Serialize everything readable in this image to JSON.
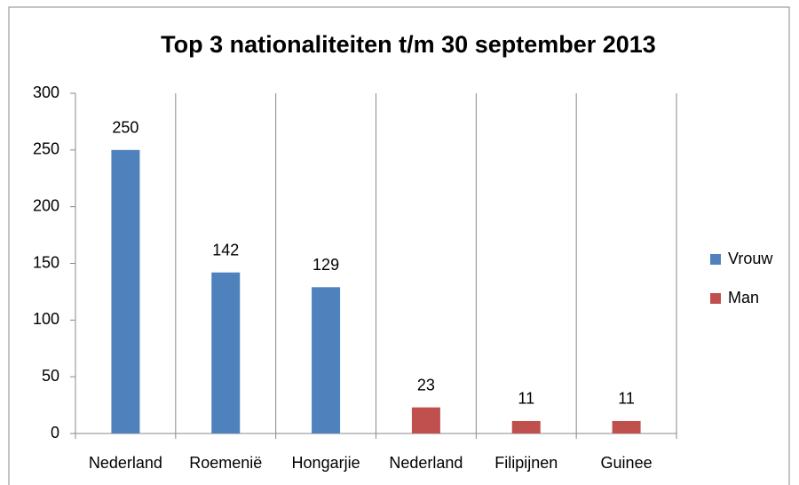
{
  "chart_data": {
    "type": "bar",
    "title": "Top 3 nationaliteiten t/m 30 september 2013",
    "categories": [
      "Nederland",
      "Roemenië",
      "Hongarjie",
      "Nederland",
      "Filipijnen",
      "Guinee"
    ],
    "series": [
      {
        "name": "Vrouw",
        "color": "#4f81bd",
        "values": [
          250,
          142,
          129,
          null,
          null,
          null
        ]
      },
      {
        "name": "Man",
        "color": "#c0504d",
        "values": [
          null,
          null,
          null,
          23,
          11,
          11
        ]
      }
    ],
    "ylim": [
      0,
      300
    ],
    "yticks": [
      0,
      50,
      100,
      150,
      200,
      250,
      300
    ],
    "grid": false,
    "category_grid": true,
    "legend": "right"
  }
}
